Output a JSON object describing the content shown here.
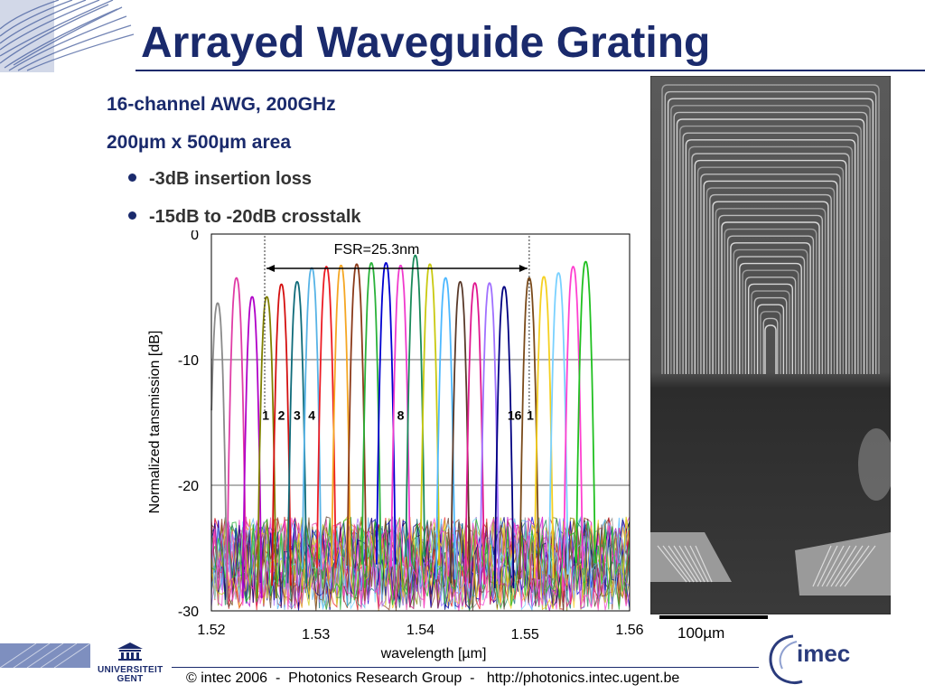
{
  "title": "Arrayed Waveguide Grating",
  "specs": {
    "line1": "16-channel AWG, 200GHz",
    "line2": "200µm x 500µm area"
  },
  "bullets": [
    "-3dB insertion loss",
    "-15dB to -20dB crosstalk"
  ],
  "chart_data": {
    "type": "line",
    "xlabel": "wavelength [µm]",
    "ylabel": "Normalized tansmission [dB]",
    "xlim": [
      1.52,
      1.56
    ],
    "ylim": [
      -30,
      0
    ],
    "x_ticks": [
      "1.52",
      "1.53",
      "1.54",
      "1.55",
      "1.56"
    ],
    "y_ticks": [
      "0",
      "-10",
      "-20",
      "-30"
    ],
    "grid": "horizontal",
    "annotation": "FSR=25.3nm",
    "fsr_markers_um": [
      1.5251,
      1.5504
    ],
    "channel_labels": [
      {
        "text": "1",
        "x": 1.5252
      },
      {
        "text": "2",
        "x": 1.5267
      },
      {
        "text": "3",
        "x": 1.5282
      },
      {
        "text": "4",
        "x": 1.5296
      },
      {
        "text": "8",
        "x": 1.5381
      },
      {
        "text": "16",
        "x": 1.549
      },
      {
        "text": "1",
        "x": 1.5505
      }
    ],
    "peaks": [
      {
        "x": 1.5206,
        "peak": -5.5,
        "color": "#8a8a8a"
      },
      {
        "x": 1.5224,
        "peak": -3.5,
        "color": "#e03ca6"
      },
      {
        "x": 1.5239,
        "peak": -5.0,
        "color": "#b000c8"
      },
      {
        "x": 1.5253,
        "peak": -5.0,
        "color": "#808000"
      },
      {
        "x": 1.5267,
        "peak": -4.0,
        "color": "#d41010"
      },
      {
        "x": 1.5282,
        "peak": -3.8,
        "color": "#0f6b7a"
      },
      {
        "x": 1.5296,
        "peak": -2.7,
        "color": "#57b3e6"
      },
      {
        "x": 1.531,
        "peak": -2.6,
        "color": "#ec1c24"
      },
      {
        "x": 1.5324,
        "peak": -2.5,
        "color": "#f5a623"
      },
      {
        "x": 1.5339,
        "peak": -2.4,
        "color": "#8b3a1a"
      },
      {
        "x": 1.5353,
        "peak": -2.3,
        "color": "#2ab23a"
      },
      {
        "x": 1.5367,
        "peak": -2.3,
        "color": "#0000d0"
      },
      {
        "x": 1.5381,
        "peak": -2.5,
        "color": "#f03acd"
      },
      {
        "x": 1.5395,
        "peak": -1.7,
        "color": "#1a8a5a"
      },
      {
        "x": 1.5409,
        "peak": -2.4,
        "color": "#c9c910"
      },
      {
        "x": 1.5424,
        "peak": -3.5,
        "color": "#4db8ff"
      },
      {
        "x": 1.5438,
        "peak": -3.8,
        "color": "#5a3a2a"
      },
      {
        "x": 1.5452,
        "peak": -3.9,
        "color": "#e01890"
      },
      {
        "x": 1.5466,
        "peak": -3.9,
        "color": "#a070ff"
      },
      {
        "x": 1.548,
        "peak": -4.2,
        "color": "#000080"
      },
      {
        "x": 1.5504,
        "peak": -3.5,
        "color": "#7a4a1a"
      },
      {
        "x": 1.5518,
        "peak": -3.4,
        "color": "#f5d020"
      },
      {
        "x": 1.5532,
        "peak": -3.1,
        "color": "#7ad1ff"
      },
      {
        "x": 1.5546,
        "peak": -2.6,
        "color": "#ff40d0"
      },
      {
        "x": 1.5558,
        "peak": -2.2,
        "color": "#20c020"
      }
    ]
  },
  "image": {
    "scale_label": "100µm"
  },
  "footer": {
    "text": "© intec 2006  -  Photonics Research Group  -   http://photonics.intec.ugent.be",
    "university": "UNIVERSITEIT GENT",
    "imec": "imec"
  },
  "colors": {
    "title": "#1a2a6c",
    "accent": "#1a2a6c"
  }
}
